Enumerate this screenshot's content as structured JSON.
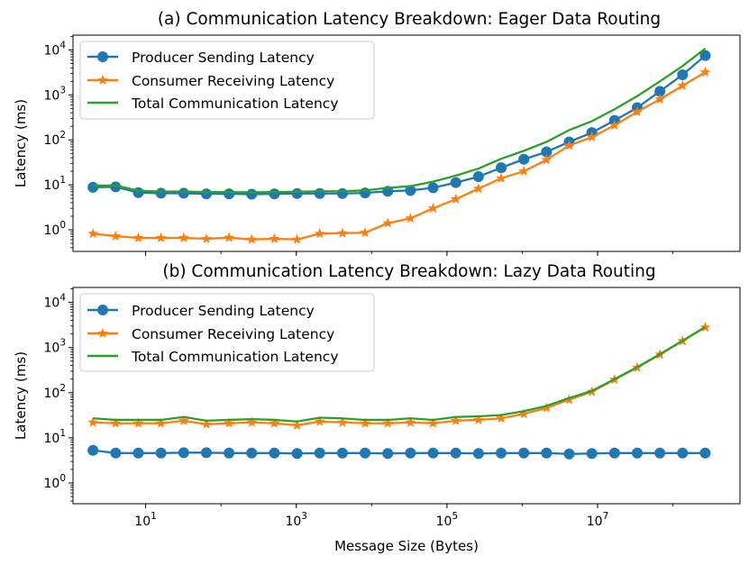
{
  "chart_data": {
    "type": "line",
    "xlabel": "Message Size (Bytes)",
    "x_ticks": [
      {
        "base": "10",
        "exp": "1",
        "value": 10
      },
      {
        "base": "10",
        "exp": "3",
        "value": 1000
      },
      {
        "base": "10",
        "exp": "5",
        "value": 100000
      },
      {
        "base": "10",
        "exp": "7",
        "value": 10000000
      }
    ],
    "y_ticks": [
      {
        "base": "10",
        "exp": "0",
        "value": 1
      },
      {
        "base": "10",
        "exp": "1",
        "value": 10
      },
      {
        "base": "10",
        "exp": "2",
        "value": 100
      },
      {
        "base": "10",
        "exp": "3",
        "value": 1000
      },
      {
        "base": "10",
        "exp": "4",
        "value": 10000
      }
    ],
    "x": [
      2,
      4,
      8,
      16,
      32,
      64,
      128,
      256,
      512,
      1024,
      2048,
      4096,
      8192,
      16384,
      32768,
      65536,
      131072,
      262144,
      524288,
      1048576,
      2097152,
      4194304,
      8388608,
      16777216,
      33554432,
      67108864,
      134217728,
      268435456
    ],
    "colors": {
      "producer": "#1f77b4",
      "consumer": "#ff7f0e",
      "total": "#2ca02c"
    },
    "panels": [
      {
        "title": "(a) Communication Latency Breakdown: Eager Data Routing",
        "ylabel": "Latency (ms)",
        "legend_position": "upper-left",
        "series": [
          {
            "key": "producer",
            "name": "Producer Sending Latency",
            "marker": "circle",
            "values": [
              8.8,
              9.0,
              6.7,
              6.5,
              6.5,
              6.3,
              6.3,
              6.2,
              6.3,
              6.4,
              6.4,
              6.4,
              6.6,
              7.2,
              7.5,
              8.6,
              11.2,
              15.2,
              24,
              37,
              54,
              90,
              145,
              270,
              520,
              1200,
              2800,
              7500
            ]
          },
          {
            "key": "consumer",
            "name": "Consumer Receiving Latency",
            "marker": "star",
            "values": [
              0.82,
              0.72,
              0.66,
              0.66,
              0.66,
              0.63,
              0.67,
              0.61,
              0.63,
              0.61,
              0.82,
              0.84,
              0.86,
              1.4,
              1.8,
              3.0,
              4.8,
              8.2,
              14,
              20,
              36,
              75,
              115,
              210,
              420,
              800,
              1600,
              3200
            ]
          },
          {
            "key": "total",
            "name": "Total Communication Latency",
            "marker": "none",
            "values": [
              9.6,
              9.7,
              7.4,
              7.1,
              7.1,
              6.9,
              6.9,
              6.8,
              6.9,
              7.0,
              7.2,
              7.2,
              7.5,
              8.6,
              9.3,
              11.8,
              16,
              23,
              38,
              57,
              90,
              165,
              260,
              480,
              940,
              2000,
              4400,
              10700
            ]
          }
        ]
      },
      {
        "title": "(b) Communication Latency Breakdown: Lazy Data Routing",
        "ylabel": "Latency (ms)",
        "legend_position": "upper-left",
        "series": [
          {
            "key": "producer",
            "name": "Producer Sending Latency",
            "marker": "circle",
            "values": [
              5.3,
              4.6,
              4.6,
              4.6,
              4.7,
              4.7,
              4.6,
              4.6,
              4.6,
              4.5,
              4.6,
              4.6,
              4.6,
              4.5,
              4.6,
              4.6,
              4.6,
              4.5,
              4.6,
              4.6,
              4.6,
              4.4,
              4.5,
              4.6,
              4.6,
              4.6,
              4.6,
              4.6
            ]
          },
          {
            "key": "consumer",
            "name": "Consumer Receiving Latency",
            "marker": "star",
            "values": [
              22,
              21,
              21,
              21,
              24,
              20,
              21,
              22,
              21,
              19,
              23,
              22,
              21,
              21,
              22,
              21,
              24,
              25,
              27,
              34,
              46,
              70,
              105,
              195,
              360,
              700,
              1400,
              2800
            ]
          },
          {
            "key": "total",
            "name": "Total Communication Latency",
            "marker": "none",
            "values": [
              27,
              25,
              25,
              25,
              29,
              24,
              25,
              26,
              25,
              23,
              28,
              27,
              25,
              25,
              27,
              25,
              29,
              30,
              32,
              39,
              51,
              76,
              110,
              200,
              370,
              710,
              1420,
              2850
            ]
          }
        ]
      }
    ]
  }
}
